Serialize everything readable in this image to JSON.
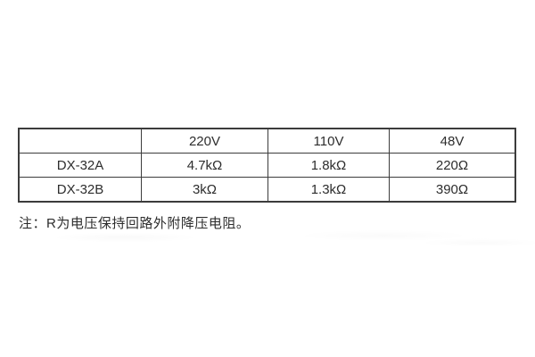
{
  "table": {
    "columns": [
      "",
      "220V",
      "110V",
      "48V"
    ],
    "rows": [
      {
        "model": "DX-32A",
        "values": [
          "4.7kΩ",
          "1.8kΩ",
          "220Ω"
        ]
      },
      {
        "model": "DX-32B",
        "values": [
          "3kΩ",
          "1.3kΩ",
          "390Ω"
        ]
      }
    ]
  },
  "note": "注：R为电压保持回路外附降压电阻。",
  "colors": {
    "border": "#3c3c3c",
    "text": "#2d2d2d",
    "background": "#ffffff"
  }
}
